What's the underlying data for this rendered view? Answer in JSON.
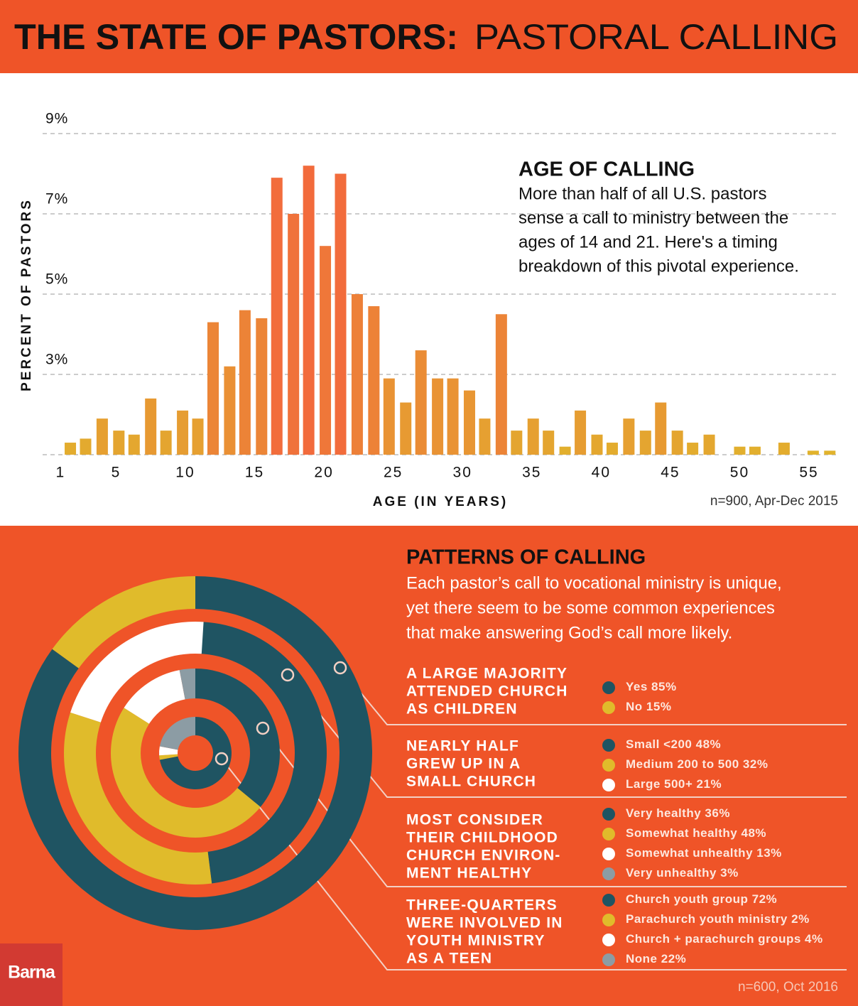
{
  "header": {
    "title_bold": "THE STATE OF PASTORS:",
    "title_light": "PASTORAL CALLING"
  },
  "logo": "Barna",
  "chart_data": [
    {
      "type": "bar",
      "title": "AGE OF CALLING",
      "subtitle": [
        "More than half of all U.S. pastors",
        "sense a call to ministry between the",
        "ages of 14 and 21. Here's a timing",
        "breakdown of this pivotal experience."
      ],
      "ylabel": "PERCENT OF PASTORS",
      "xlabel": "AGE (IN YEARS)",
      "note": "n=900, Apr-Dec 2015",
      "x": [
        1.7,
        2.8,
        4.0,
        5.2,
        6.3,
        7.5,
        8.6,
        9.8,
        10.9,
        12.0,
        13.2,
        14.3,
        15.5,
        16.6,
        17.8,
        18.9,
        20.1,
        21.2,
        22.4,
        23.6,
        24.7,
        25.9,
        27.0,
        28.2,
        29.3,
        30.5,
        31.6,
        32.8,
        33.9,
        35.1,
        36.2,
        37.4,
        38.5,
        39.7,
        40.8,
        42.0,
        43.2,
        44.3,
        45.5,
        46.6,
        47.8,
        50.0,
        51.1,
        53.2,
        55.3,
        56.5
      ],
      "values": [
        1.3,
        1.4,
        1.9,
        1.6,
        1.5,
        2.4,
        1.6,
        2.1,
        1.9,
        4.3,
        3.2,
        4.6,
        4.4,
        7.9,
        7.0,
        8.2,
        6.2,
        8.0,
        5.0,
        4.7,
        2.9,
        2.3,
        3.6,
        2.9,
        2.9,
        2.6,
        1.9,
        4.5,
        1.6,
        1.9,
        1.6,
        1.2,
        2.1,
        1.5,
        1.3,
        1.9,
        1.6,
        2.3,
        1.6,
        1.3,
        1.5,
        1.2,
        1.2,
        1.3,
        1.1,
        1.1
      ],
      "xlim": [
        -0.3,
        57.1
      ],
      "xticks": [
        1,
        5,
        10,
        15,
        20,
        25,
        30,
        35,
        40,
        45,
        50,
        55
      ],
      "ylim": [
        1,
        9
      ],
      "yticks": [
        {
          "value": 3,
          "label": "3%"
        },
        {
          "value": 5,
          "label": "5%"
        },
        {
          "value": 7,
          "label": "7%"
        },
        {
          "value": 9,
          "label": "9%"
        }
      ],
      "grid": true,
      "color_low": "#dfbd2b",
      "color_high": "#f26b3c"
    },
    {
      "type": "donut",
      "title": "PATTERNS OF CALLING",
      "subtitle": [
        "Each pastor’s call to vocational ministry is unique,",
        "yet there seem to be some common experiences",
        "that make answering God’s call more likely."
      ],
      "note": "n=600, Oct 2016",
      "rings": [
        {
          "label": [
            "A LARGE MAJORITY",
            "ATTENDED CHURCH",
            "AS CHILDREN"
          ],
          "categories": [
            "Yes",
            "No"
          ],
          "values": [
            85,
            15
          ],
          "value_labels": [
            "85%",
            "15%"
          ],
          "colors": [
            "#1f5462",
            "#e0bb2b"
          ]
        },
        {
          "label": [
            "NEARLY HALF",
            "GREW UP IN A",
            "SMALL CHURCH"
          ],
          "categories": [
            "Small <200",
            "Medium 200 to 500",
            "Large 500+"
          ],
          "values": [
            48,
            32,
            21
          ],
          "value_labels": [
            "48%",
            "32%",
            "21%"
          ],
          "colors": [
            "#1f5462",
            "#e0bb2b",
            "#ffffff"
          ]
        },
        {
          "label": [
            "MOST CONSIDER",
            "THEIR CHILDHOOD",
            "CHURCH ENVIRON-",
            "MENT HEALTHY"
          ],
          "categories": [
            "Very healthy",
            "Somewhat healthy",
            "Somewhat unhealthy",
            "Very unhealthy"
          ],
          "values": [
            36,
            48,
            13,
            3
          ],
          "value_labels": [
            "36%",
            "48%",
            "13%",
            "3%"
          ],
          "colors": [
            "#1f5462",
            "#e0bb2b",
            "#ffffff",
            "#8c9ca4"
          ]
        },
        {
          "label": [
            "THREE-QUARTERS",
            "WERE INVOLVED IN",
            "YOUTH MINISTRY",
            "AS A TEEN"
          ],
          "categories": [
            "Church youth group",
            "Parachurch youth ministry",
            "Church + parachurch groups",
            "None"
          ],
          "values": [
            72,
            2,
            4,
            22
          ],
          "value_labels": [
            "72%",
            "2%",
            "4%",
            "22%"
          ],
          "colors": [
            "#1f5462",
            "#e0bb2b",
            "#ffffff",
            "#8c9ca4"
          ]
        }
      ]
    }
  ]
}
